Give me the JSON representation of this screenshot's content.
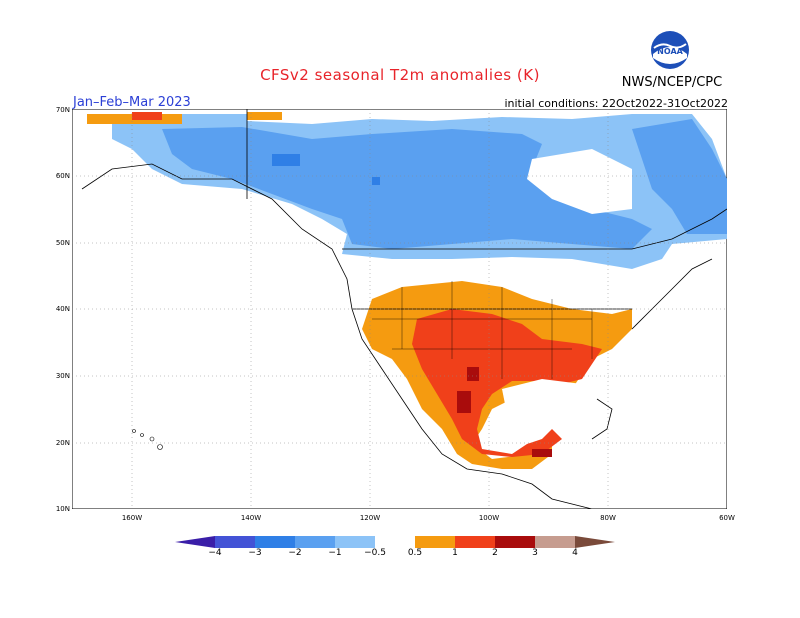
{
  "title": "CFSv2 seasonal T2m anomalies (K)",
  "period": "Jan–Feb–Mar 2023",
  "initial_conditions": "initial conditions: 22Oct2022-31Oct2022",
  "agency": "NWS/NCEP/CPC",
  "logo": {
    "text": "NOAA",
    "icon": "noaa-logo"
  },
  "lat_labels": [
    "70N",
    "60N",
    "50N",
    "40N",
    "30N",
    "20N",
    "10N"
  ],
  "lon_labels": [
    "160W",
    "140W",
    "120W",
    "100W",
    "80W",
    "60W"
  ],
  "colorbar": {
    "labels": [
      "−4",
      "−3",
      "−2",
      "−1",
      "−0.5",
      "0.5",
      "1",
      "2",
      "3",
      "4"
    ],
    "colors": [
      "#3a1ea8",
      "#4353d6",
      "#2f7fe6",
      "#5aa0f0",
      "#8cc3f7",
      "#ffffff",
      "#f59b10",
      "#f0401a",
      "#a90c0c",
      "#c69c8f",
      "#7a4a3a"
    ]
  },
  "colors": {
    "ocean": "#ffffff",
    "land": "#ffffff",
    "title": "#e8242a",
    "period": "#2b3fd6"
  }
}
